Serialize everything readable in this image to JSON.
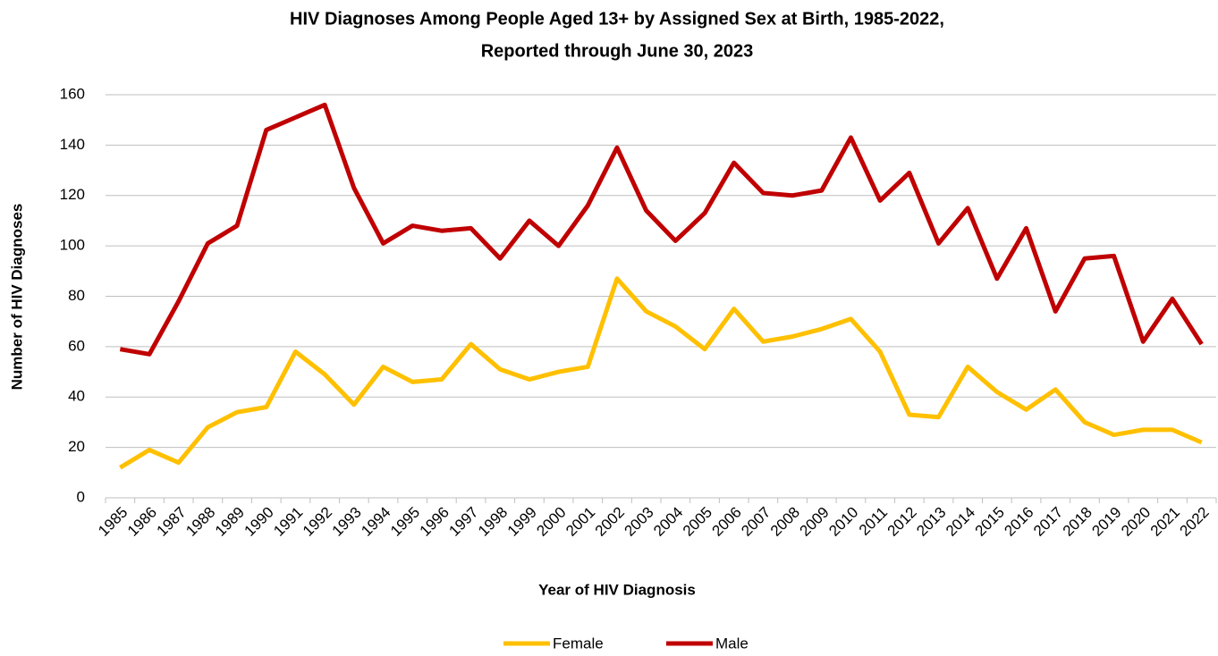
{
  "chart_data": {
    "type": "line",
    "title": [
      "HIV Diagnoses Among People Aged 13+ by Assigned Sex at Birth, 1985-2022,",
      "Reported through June 30, 2023"
    ],
    "x_label": "Year of HIV Diagnosis",
    "y_label": "Number of HIV Diagnoses",
    "categories": [
      "1985",
      "1986",
      "1987",
      "1988",
      "1989",
      "1990",
      "1991",
      "1992",
      "1993",
      "1994",
      "1995",
      "1996",
      "1997",
      "1998",
      "1999",
      "2000",
      "2001",
      "2002",
      "2003",
      "2004",
      "2005",
      "2006",
      "2007",
      "2008",
      "2009",
      "2010",
      "2011",
      "2012",
      "2013",
      "2014",
      "2015",
      "2016",
      "2017",
      "2018",
      "2019",
      "2020",
      "2021",
      "2022"
    ],
    "series": [
      {
        "name": "Female",
        "color": "#ffc000",
        "values": [
          12,
          19,
          14,
          28,
          34,
          36,
          58,
          49,
          37,
          52,
          46,
          47,
          61,
          51,
          47,
          50,
          52,
          87,
          74,
          68,
          59,
          75,
          62,
          64,
          67,
          71,
          58,
          33,
          32,
          52,
          42,
          35,
          43,
          30,
          25,
          27,
          27,
          22
        ]
      },
      {
        "name": "Male",
        "color": "#c00000",
        "values": [
          59,
          57,
          78,
          101,
          108,
          146,
          151,
          156,
          123,
          101,
          108,
          106,
          107,
          95,
          110,
          100,
          116,
          139,
          114,
          102,
          113,
          133,
          121,
          120,
          122,
          143,
          118,
          129,
          101,
          115,
          87,
          107,
          74,
          95,
          96,
          62,
          79,
          61
        ]
      }
    ],
    "ylim": [
      0,
      160
    ],
    "yticks": [
      0,
      20,
      40,
      60,
      80,
      100,
      120,
      140,
      160
    ],
    "grid": true,
    "legend": "bottom"
  }
}
